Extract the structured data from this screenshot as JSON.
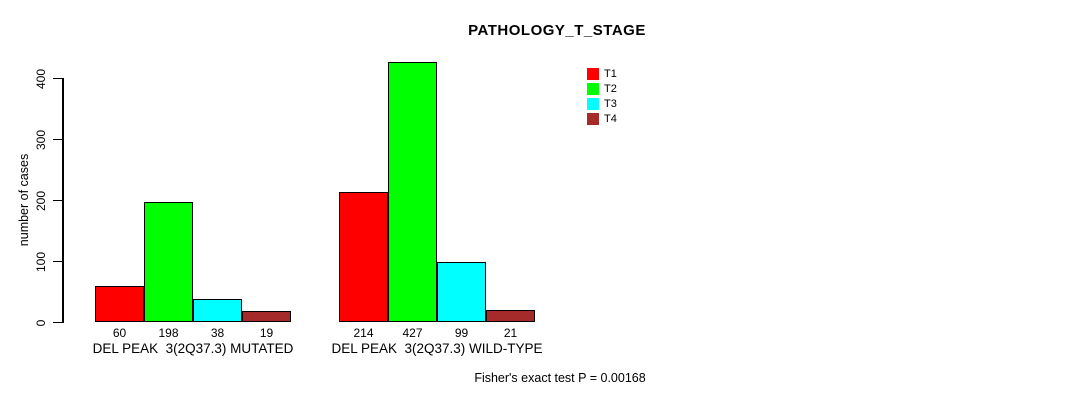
{
  "chart_data": {
    "type": "bar",
    "title": "PATHOLOGY_T_STAGE",
    "ylabel": "number of cases",
    "ylim": [
      0,
      400
    ],
    "yticks": [
      0,
      100,
      200,
      300,
      400
    ],
    "grid": false,
    "legend_position": "top-right",
    "series": [
      {
        "name": "T1",
        "color": "#FF0000"
      },
      {
        "name": "T2",
        "color": "#00FF00"
      },
      {
        "name": "T3",
        "color": "#00FFFF"
      },
      {
        "name": "T4",
        "color": "#A52A2A"
      }
    ],
    "groups": [
      {
        "label": "DEL PEAK  3(2Q37.3) MUTATED",
        "values": [
          60,
          198,
          38,
          19
        ]
      },
      {
        "label": "DEL PEAK  3(2Q37.3) WILD-TYPE",
        "values": [
          214,
          427,
          99,
          21
        ]
      }
    ],
    "annotation": "Fisher's exact test P = 0.00168"
  }
}
